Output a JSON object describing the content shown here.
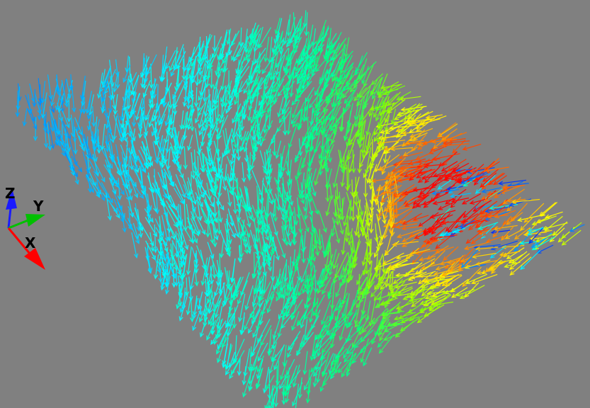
{
  "scene": {
    "background_color": "#808080",
    "colormap": [
      "#0000ff",
      "#0080ff",
      "#00ffff",
      "#00ff80",
      "#80ff00",
      "#ffff00",
      "#ff8000",
      "#ff0000"
    ],
    "glyph": "arrow"
  },
  "orientation_triad": {
    "axes": [
      {
        "label": "Z",
        "color": "#1a1aff"
      },
      {
        "label": "Y",
        "color": "#00c000"
      },
      {
        "label": "X",
        "color": "#ff0000"
      }
    ]
  }
}
